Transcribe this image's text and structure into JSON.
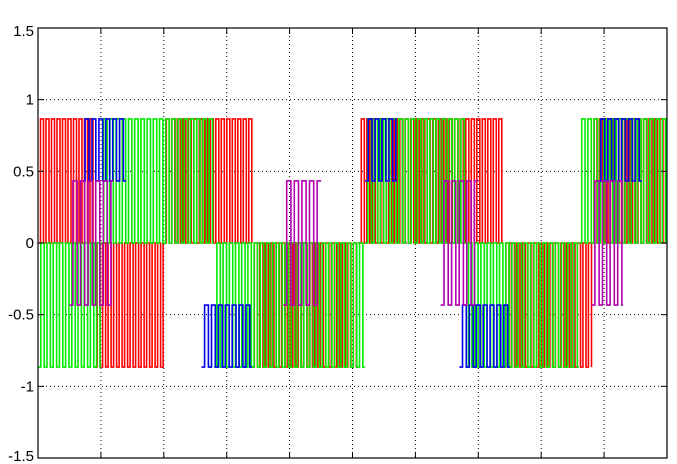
{
  "chart_data": {
    "type": "line",
    "title": "",
    "xlabel": "",
    "ylabel": "",
    "ylim": [
      -1.5,
      1.5
    ],
    "yticks": [
      1.5,
      1,
      0.5,
      0,
      -0.5,
      -1,
      -1.5
    ],
    "ytick_labels": [
      "1.5",
      "1",
      "0.5",
      "0",
      "-0.5",
      "-1",
      "-1.5"
    ],
    "x_gridlines": 10,
    "grid": true,
    "legend": "none",
    "levels": [
      0.866,
      0.433,
      0,
      -0.433,
      -0.866
    ],
    "series": [
      {
        "color": "#ff0000",
        "segments": [
          {
            "x": [
              0.0,
              0.09
            ],
            "lo": 0,
            "hi": 0.866
          },
          {
            "x": [
              0.09,
              0.2
            ],
            "lo": -0.866,
            "hi": 0
          },
          {
            "x": [
              0.2,
              0.34
            ],
            "lo": 0,
            "hi": 0.866
          },
          {
            "x": [
              0.34,
              0.51
            ],
            "lo": -0.866,
            "hi": 0
          },
          {
            "x": [
              0.51,
              0.74
            ],
            "lo": 0,
            "hi": 0.866
          },
          {
            "x": [
              0.74,
              0.88
            ],
            "lo": -0.866,
            "hi": 0
          },
          {
            "x": [
              0.88,
              1.0
            ],
            "lo": 0,
            "hi": 0.866
          }
        ]
      },
      {
        "color": "#00ee00",
        "segments": [
          {
            "x": [
              0.0,
              0.1
            ],
            "lo": -0.866,
            "hi": 0
          },
          {
            "x": [
              0.1,
              0.28
            ],
            "lo": 0,
            "hi": 0.866
          },
          {
            "x": [
              0.28,
              0.52
            ],
            "lo": -0.866,
            "hi": 0
          },
          {
            "x": [
              0.52,
              0.68
            ],
            "lo": 0,
            "hi": 0.866
          },
          {
            "x": [
              0.68,
              0.86
            ],
            "lo": -0.866,
            "hi": 0
          },
          {
            "x": [
              0.86,
              1.0
            ],
            "lo": 0,
            "hi": 0.866
          }
        ]
      },
      {
        "color": "#0000ee",
        "segments": [
          {
            "x": [
              0.07,
              0.14
            ],
            "lo": 0.433,
            "hi": 0.866
          },
          {
            "x": [
              0.26,
              0.34
            ],
            "lo": -0.866,
            "hi": -0.433
          },
          {
            "x": [
              0.52,
              0.57
            ],
            "lo": 0.433,
            "hi": 0.866
          },
          {
            "x": [
              0.67,
              0.75
            ],
            "lo": -0.866,
            "hi": -0.433
          },
          {
            "x": [
              0.89,
              0.96
            ],
            "lo": 0.433,
            "hi": 0.866
          }
        ]
      },
      {
        "color": "#b000b0",
        "segments": [
          {
            "x": [
              0.05,
              0.12
            ],
            "lo": -0.433,
            "hi": 0.433
          },
          {
            "x": [
              0.39,
              0.45
            ],
            "lo": -0.433,
            "hi": 0.433
          },
          {
            "x": [
              0.64,
              0.7
            ],
            "lo": -0.433,
            "hi": 0.433
          },
          {
            "x": [
              0.88,
              0.93
            ],
            "lo": -0.433,
            "hi": 0.433
          }
        ]
      }
    ]
  }
}
